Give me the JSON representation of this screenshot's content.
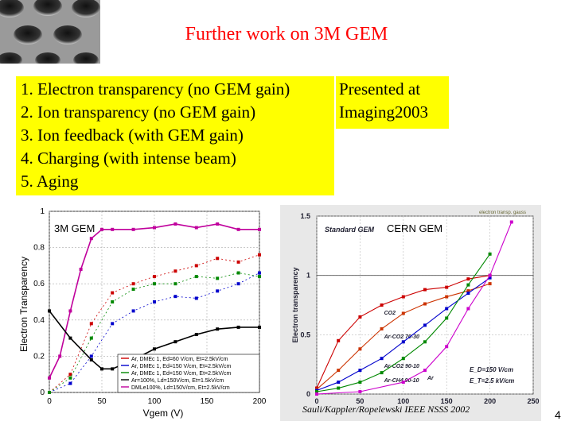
{
  "slide": {
    "title": "Further work on 3M GEM",
    "list": [
      "1. Electron transparency (no GEM gain)",
      "2. Ion transparency (no GEM gain)",
      "3. Ion feedback (with GEM gain)",
      "4. Charging (with intense beam)",
      "5. Aging"
    ],
    "presented": [
      "Presented at",
      "Imaging2003"
    ],
    "page_number": "4",
    "citation": "Sauli/Kappler/Ropelewski IEEE NSSS 2002"
  },
  "colors": {
    "title": "#ff0000",
    "highlight": "#ffff00"
  },
  "chart_data": [
    {
      "type": "line",
      "label": "3M GEM",
      "xlabel": "Vgem (V)",
      "ylabel": "Electron Transparency",
      "xlim": [
        0,
        200
      ],
      "ylim": [
        0,
        1
      ],
      "xticks": [
        "0",
        "50",
        "100",
        "150",
        "200"
      ],
      "yticks": [
        "0",
        "0.2",
        "0.4",
        "0.6",
        "0.8",
        "1"
      ],
      "legend": [
        "Ar, DMEc 1, Ed=60 V/cm, Et=2.5kV/cm",
        "Ar, DMEc 1, Ed=150 V/cm, Et=2.5kV/cm",
        "Ar, DMEc 1, Ed=150 V/cm, Et=2.5kV/cm",
        "Ar=100%, Ld=150V/cm, Et=1.5kV/cm",
        "DMLe100%, Ld=150V/cm, Et=2.5kV/cm"
      ],
      "series": [
        {
          "color": "#c0009c",
          "x": [
            0,
            10,
            20,
            30,
            40,
            50,
            60,
            80,
            100,
            120,
            140,
            160,
            180,
            200
          ],
          "y": [
            0.08,
            0.2,
            0.45,
            0.68,
            0.85,
            0.9,
            0.9,
            0.9,
            0.91,
            0.93,
            0.91,
            0.93,
            0.9,
            0.9
          ]
        },
        {
          "color": "#000000",
          "x": [
            0,
            20,
            40,
            50,
            60,
            80,
            100,
            120,
            140,
            160,
            180,
            200
          ],
          "y": [
            0.45,
            0.3,
            0.18,
            0.13,
            0.13,
            0.18,
            0.24,
            0.28,
            0.32,
            0.35,
            0.36,
            0.36
          ]
        },
        {
          "color": "#cc0000",
          "x": [
            0,
            20,
            40,
            60,
            80,
            100,
            120,
            140,
            160,
            180,
            200
          ],
          "y": [
            0.0,
            0.1,
            0.38,
            0.55,
            0.6,
            0.64,
            0.67,
            0.7,
            0.74,
            0.72,
            0.76
          ]
        },
        {
          "color": "#0000cc",
          "x": [
            0,
            20,
            40,
            60,
            80,
            100,
            120,
            140,
            160,
            180,
            200
          ],
          "y": [
            0.0,
            0.05,
            0.2,
            0.38,
            0.45,
            0.5,
            0.53,
            0.52,
            0.56,
            0.6,
            0.66
          ]
        },
        {
          "color": "#008800",
          "x": [
            0,
            20,
            40,
            60,
            80,
            100,
            120,
            140,
            160,
            180,
            200
          ],
          "y": [
            0.0,
            0.08,
            0.3,
            0.5,
            0.57,
            0.6,
            0.6,
            0.64,
            0.63,
            0.66,
            0.64
          ]
        }
      ]
    },
    {
      "type": "line",
      "label": "CERN GEM",
      "ylabel": "Electron transparency",
      "inset_label": "Standard GEM",
      "top_note": "electron transp. gauss",
      "xlim": [
        0,
        250
      ],
      "ylim": [
        0,
        1.5
      ],
      "xticks": [
        "0",
        "50",
        "100",
        "150",
        "200",
        "250"
      ],
      "yticks": [
        "0",
        "0.5",
        "1",
        "1.5"
      ],
      "annotations": [
        "E_D=150 V/cm",
        "E_T=2.5 kV/cm"
      ],
      "series": [
        {
          "name": "CO2",
          "color": "#cc0000",
          "x": [
            0,
            25,
            50,
            75,
            100,
            125,
            150,
            175,
            200
          ],
          "y": [
            0.05,
            0.45,
            0.65,
            0.75,
            0.82,
            0.88,
            0.9,
            0.97,
            1.0
          ]
        },
        {
          "name": "Ar-CO2 70-30",
          "color": "#cc3300",
          "x": [
            0,
            25,
            50,
            75,
            100,
            125,
            150,
            175,
            200
          ],
          "y": [
            0.04,
            0.2,
            0.38,
            0.55,
            0.68,
            0.76,
            0.82,
            0.87,
            0.93
          ]
        },
        {
          "name": "Ar-CO2 90-10",
          "color": "#0000cc",
          "x": [
            0,
            25,
            50,
            75,
            100,
            125,
            150,
            175,
            200
          ],
          "y": [
            0.03,
            0.1,
            0.2,
            0.3,
            0.44,
            0.58,
            0.72,
            0.85,
            0.98
          ]
        },
        {
          "name": "Ar-CH4 90-10",
          "color": "#008800",
          "x": [
            0,
            25,
            50,
            75,
            100,
            125,
            150,
            175,
            200
          ],
          "y": [
            0.02,
            0.05,
            0.1,
            0.18,
            0.3,
            0.44,
            0.64,
            0.92,
            1.18
          ]
        },
        {
          "name": "Ar",
          "color": "#cc00cc",
          "x": [
            0,
            50,
            100,
            125,
            150,
            175,
            200,
            225
          ],
          "y": [
            0.0,
            0.02,
            0.1,
            0.2,
            0.4,
            0.72,
            1.0,
            1.45
          ]
        }
      ]
    }
  ]
}
